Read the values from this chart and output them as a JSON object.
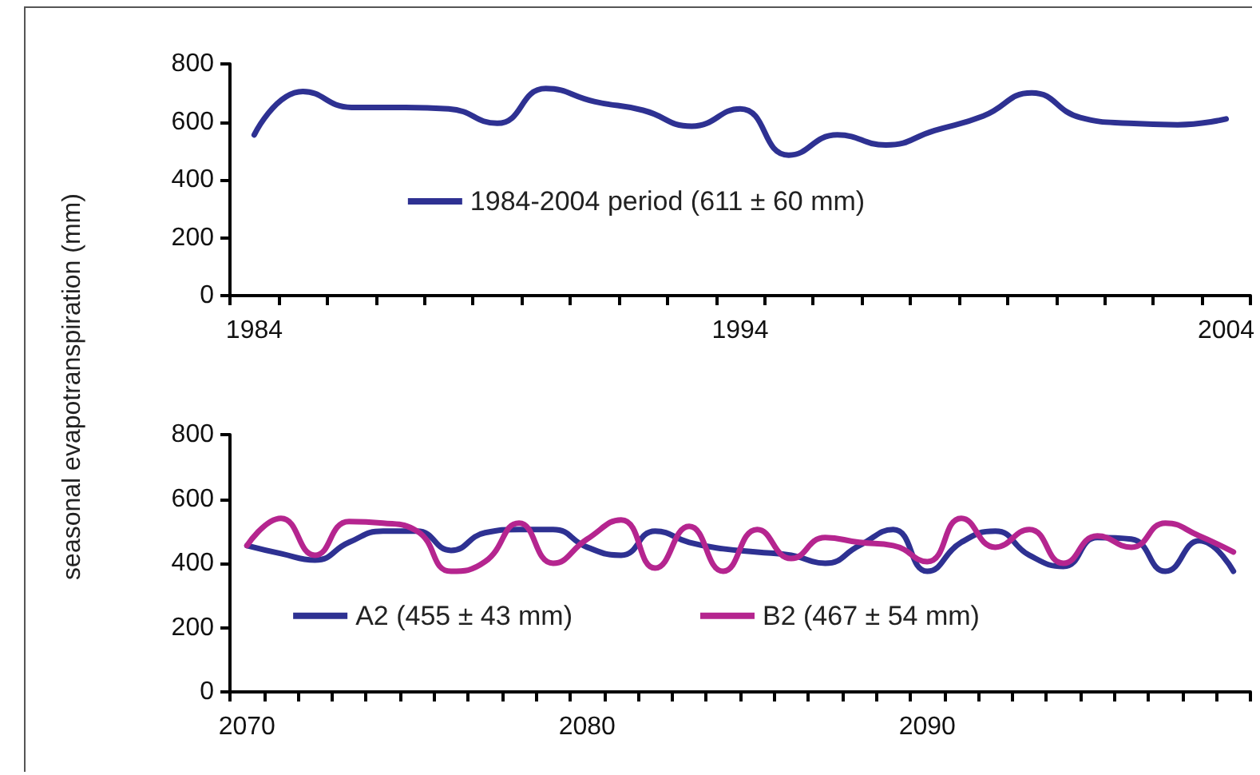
{
  "chart_data": [
    {
      "type": "line",
      "ylabel": "seasonal evapotranspiration (mm)",
      "categories": [
        "1984",
        null,
        null,
        null,
        null,
        null,
        null,
        null,
        null,
        null,
        "1994",
        null,
        null,
        null,
        null,
        null,
        null,
        null,
        null,
        null,
        "2004"
      ],
      "series": [
        {
          "name": "1984-2004 period (611 ± 60 mm)",
          "color": "#2e3192",
          "values": [
            555,
            705,
            650,
            650,
            645,
            595,
            715,
            670,
            640,
            585,
            645,
            485,
            555,
            520,
            570,
            620,
            700,
            615,
            595,
            590,
            610
          ]
        }
      ],
      "ylim": [
        0,
        800
      ],
      "yticks": [
        0,
        200,
        400,
        600,
        800
      ],
      "grid": false,
      "legend": "center",
      "marker": "none",
      "line_style": "solid"
    },
    {
      "type": "line",
      "categories": [
        "2070",
        null,
        null,
        null,
        null,
        null,
        null,
        null,
        null,
        null,
        "2080",
        null,
        null,
        null,
        null,
        null,
        null,
        null,
        null,
        null,
        "2090",
        null,
        null,
        null,
        null,
        null,
        null,
        null,
        null,
        null
      ],
      "series": [
        {
          "name": "A2 (455 ± 43 mm)",
          "color": "#2e3192",
          "values": [
            455,
            430,
            410,
            465,
            500,
            500,
            440,
            495,
            505,
            505,
            450,
            425,
            500,
            465,
            445,
            435,
            425,
            400,
            455,
            505,
            375,
            465,
            500,
            425,
            390,
            480,
            475,
            375,
            470,
            375
          ]
        },
        {
          "name": "B2 (467 ± 54 mm)",
          "color": "#b5258f",
          "values": [
            455,
            540,
            425,
            530,
            525,
            500,
            375,
            405,
            525,
            400,
            475,
            535,
            385,
            515,
            375,
            505,
            415,
            480,
            465,
            455,
            405,
            540,
            450,
            505,
            400,
            485,
            450,
            525,
            485,
            435
          ]
        }
      ],
      "ylim": [
        0,
        800
      ],
      "yticks": [
        0,
        200,
        400,
        600,
        800
      ],
      "grid": false,
      "legend": "bottom",
      "marker": "none",
      "line_style": "solid"
    }
  ]
}
